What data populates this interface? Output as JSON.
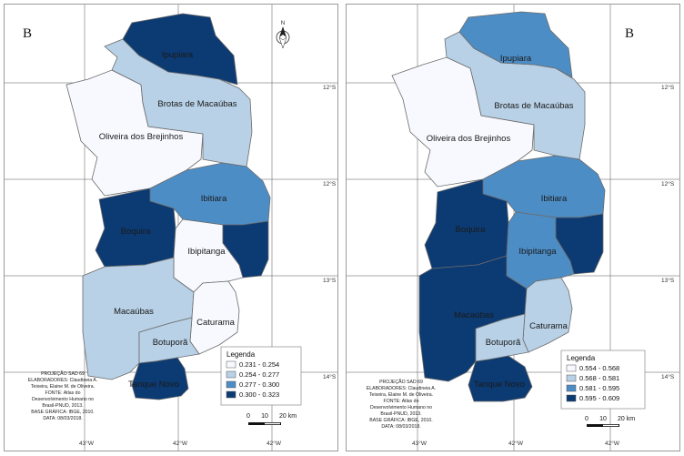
{
  "colors": {
    "c1": "#f7f9ff",
    "c2": "#b8d1e6",
    "c3": "#4d8dc5",
    "c4": "#0c3a72"
  },
  "maps": [
    {
      "panel_label": "B",
      "north_arrow": "N",
      "coords_top": [
        "12°S",
        "12°S",
        "13°S",
        "14°S"
      ],
      "coords_bottom": [
        "43°W",
        "42°W",
        "42°W"
      ],
      "legend": {
        "title": "Legenda",
        "items": [
          {
            "label": "0.231 - 0.254",
            "color": "#f7f9ff"
          },
          {
            "label": "0.254 - 0.277",
            "color": "#b8d1e6"
          },
          {
            "label": "0.277 - 0.300",
            "color": "#4d8dc5"
          },
          {
            "label": "0.300 - 0.323",
            "color": "#0c3a72"
          }
        ]
      },
      "scale": {
        "t0": "0",
        "t1": "10",
        "t2": "20 km"
      },
      "credits": [
        "PROJEÇÃO SAD 69",
        "ELABORADORES: Claudineia A.",
        "Teixeira, Elaine M. de Oliveira.",
        "FONTE: Atlas do",
        "Desenvolvimento Humano no",
        "Brasil-PNUD, 2013.",
        "BASE GRÁFICA: IBGE, 2010.",
        "DATA: 08/03/2018."
      ],
      "municipalities": {
        "ipupiara": {
          "name": "Ipupiara",
          "class": "c4"
        },
        "brotas": {
          "name": "Brotas de Macaúbas",
          "class": "c2"
        },
        "oliveira": {
          "name": "Oliveira dos Brejinhos",
          "class": "c1"
        },
        "ibitiara": {
          "name": "Ibitiara",
          "class": "c3"
        },
        "boquira": {
          "name": "Boquira",
          "class": "c4"
        },
        "ibipitanga": {
          "name": "Ibipitanga",
          "class": "c1"
        },
        "eastdark": {
          "name": "",
          "class": "c4"
        },
        "macaubas": {
          "name": "Macaúbas",
          "class": "c2"
        },
        "caturama": {
          "name": "Caturama",
          "class": "c1"
        },
        "botupora": {
          "name": "Botuporã",
          "class": "c2"
        },
        "tanque": {
          "name": "Tanque Novo",
          "class": "c4"
        }
      }
    },
    {
      "panel_label": "B",
      "north_arrow": "",
      "coords_top": [
        "12°S",
        "12°S",
        "13°S",
        "14°S"
      ],
      "coords_bottom": [
        "43°W",
        "42°W",
        "42°W"
      ],
      "legend": {
        "title": "Legenda",
        "items": [
          {
            "label": "0.554 - 0.568",
            "color": "#f7f9ff"
          },
          {
            "label": "0.568 - 0.581",
            "color": "#b8d1e6"
          },
          {
            "label": "0.581 - 0.595",
            "color": "#4d8dc5"
          },
          {
            "label": "0.595 - 0.609",
            "color": "#0c3a72"
          }
        ]
      },
      "scale": {
        "t0": "0",
        "t1": "10",
        "t2": "20 km"
      },
      "credits": [
        "PROJEÇÃO SAD 69",
        "ELABORADORES: Claudineia A.",
        "Teixeira, Elaine M. de Oliveira.",
        "FONTE: Atlas do",
        "Desenvolvimento Humano no",
        "Brasil-PNUD, 2013.",
        "BASE GRÁFICA: IBGE, 2010.",
        "DATA: 08/03/2018."
      ],
      "municipalities": {
        "ipupiara": {
          "name": "Ipupiara",
          "class": "c3"
        },
        "brotas": {
          "name": "Brotas de Macaúbas",
          "class": "c2"
        },
        "oliveira": {
          "name": "Oliveira dos Brejinhos",
          "class": "c1"
        },
        "ibitiara": {
          "name": "Ibitiara",
          "class": "c3"
        },
        "boquira": {
          "name": "Boquira",
          "class": "c4"
        },
        "ibipitanga": {
          "name": "Ibipitanga",
          "class": "c3"
        },
        "eastdark": {
          "name": "",
          "class": "c4"
        },
        "macaubas": {
          "name": "Macaúbas",
          "class": "c4"
        },
        "caturama": {
          "name": "Caturama",
          "class": "c2"
        },
        "botupora": {
          "name": "Botuporã",
          "class": "c2"
        },
        "tanque": {
          "name": "Tanque Novo",
          "class": "c4"
        }
      }
    }
  ]
}
